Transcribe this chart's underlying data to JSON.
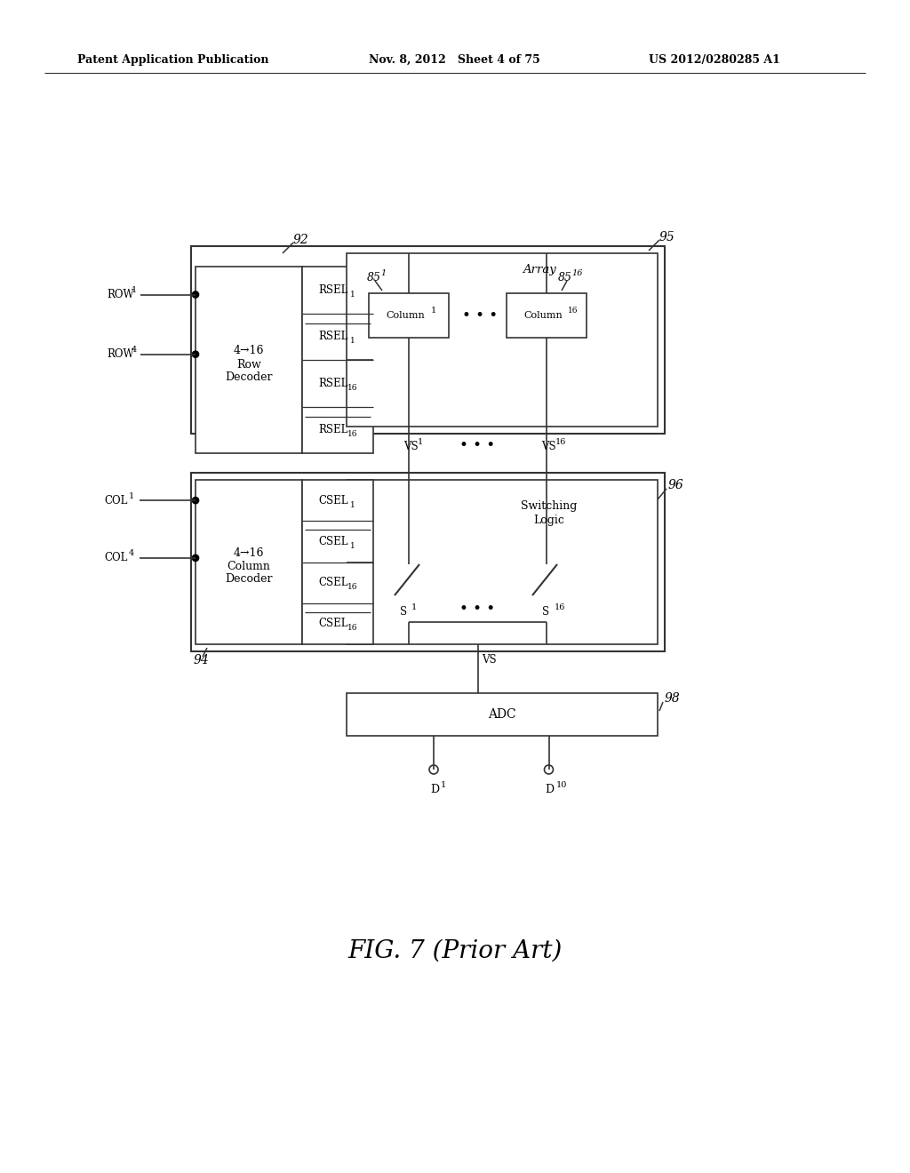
{
  "bg_color": "#ffffff",
  "header_left": "Patent Application Publication",
  "header_mid": "Nov. 8, 2012   Sheet 4 of 75",
  "header_right": "US 2012/0280285 A1",
  "fig_caption": "FIG. 7 (Prior Art)"
}
